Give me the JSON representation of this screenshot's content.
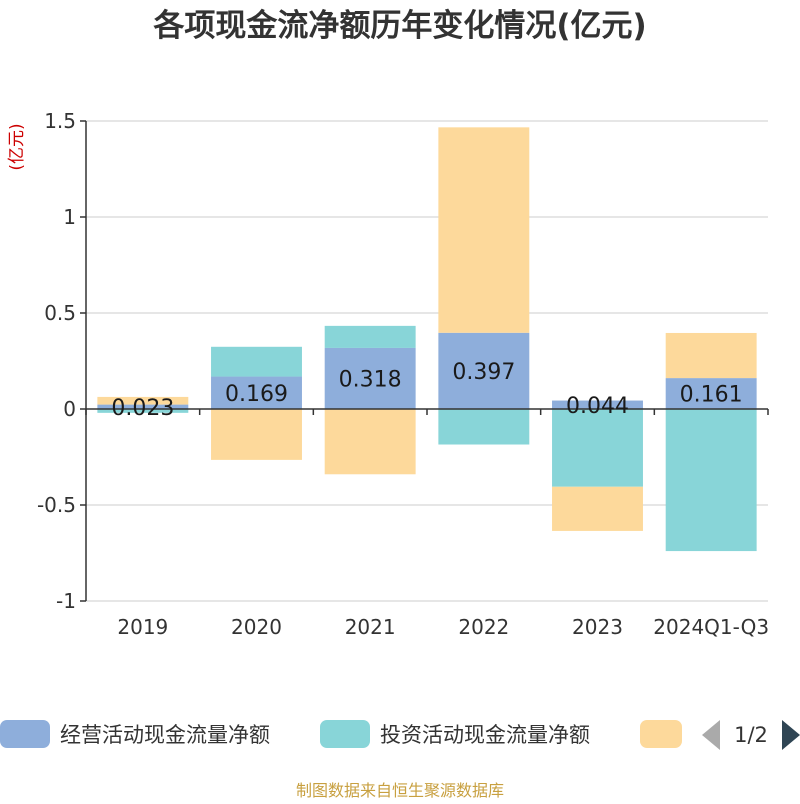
{
  "chart_data": {
    "type": "bar",
    "stacked": true,
    "title": "各项现金流净额历年变化情况(亿元)",
    "ylabel": "(亿元)",
    "xlabel": "",
    "categories": [
      "2019",
      "2020",
      "2021",
      "2022",
      "2023",
      "2024Q1-Q3"
    ],
    "ylim": [
      -1,
      1.5
    ],
    "yticks": [
      "-1",
      "-0.5",
      "0",
      "0.5",
      "1",
      "1.5"
    ],
    "grid": true,
    "series": [
      {
        "name": "经营活动现金流量净额",
        "color": "#8eaedb",
        "values": [
          0.023,
          0.169,
          0.318,
          0.397,
          0.044,
          0.161
        ],
        "labels": [
          "0.023",
          "0.169",
          "0.318",
          "0.397",
          "0.044",
          "0.161"
        ]
      },
      {
        "name": "投资活动现金流量净额",
        "color": "#88d5d8",
        "values": [
          -0.02,
          0.155,
          0.115,
          -0.185,
          -0.405,
          -0.74
        ]
      },
      {
        "name": "",
        "color": "#fdd99b",
        "values": [
          0.04,
          -0.265,
          -0.34,
          1.07,
          -0.23,
          0.235
        ]
      }
    ],
    "legend": {
      "placement": "bottom",
      "page": "1/2"
    },
    "footer": "制图数据来自恒生聚源数据库"
  },
  "colors": {
    "title": "#333333",
    "ylabel": "#cc0000",
    "footer": "#c8a040",
    "grid": "#cccccc",
    "axis": "#333333",
    "pager_active": "#2f4554",
    "pager_inactive": "#aaaaaa"
  }
}
